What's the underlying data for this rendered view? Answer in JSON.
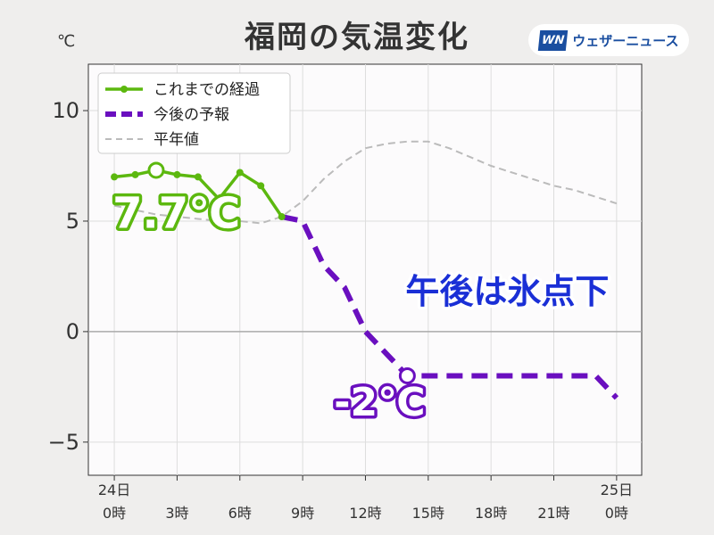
{
  "title": "福岡の気温変化",
  "brand": {
    "logo": "WN",
    "name": "ウェザーニュース"
  },
  "chart_data": {
    "type": "line",
    "title": "福岡の気温変化",
    "ylabel": "℃",
    "ylim": [
      -6.5,
      12.1
    ],
    "xlim": [
      -1.24,
      25.2
    ],
    "grid": true,
    "legend_position": "top-left",
    "yticks": [
      {
        "v": 10,
        "label": "10"
      },
      {
        "v": 5,
        "label": "5"
      },
      {
        "v": 0,
        "label": "0"
      },
      {
        "v": -5,
        "label": "−5"
      }
    ],
    "xticks": [
      {
        "v": 0,
        "l1": "24日",
        "l2": "0時"
      },
      {
        "v": 3,
        "l1": "",
        "l2": "3時"
      },
      {
        "v": 6,
        "l1": "",
        "l2": "6時"
      },
      {
        "v": 9,
        "l1": "",
        "l2": "9時"
      },
      {
        "v": 12,
        "l1": "",
        "l2": "12時"
      },
      {
        "v": 15,
        "l1": "",
        "l2": "15時"
      },
      {
        "v": 18,
        "l1": "",
        "l2": "18時"
      },
      {
        "v": 21,
        "l1": "",
        "l2": "21時"
      },
      {
        "v": 24,
        "l1": "25日",
        "l2": "0時"
      }
    ],
    "series": [
      {
        "name": "これまでの経過",
        "color": "#5cb80f",
        "style": "solid",
        "x": [
          0,
          1,
          2,
          3,
          4,
          5,
          6,
          7,
          8
        ],
        "values": [
          7.0,
          7.1,
          7.3,
          7.1,
          7.0,
          6.0,
          7.2,
          6.6,
          5.2
        ]
      },
      {
        "name": "今後の予報",
        "color": "#6a0fbf",
        "style": "dashed",
        "x": [
          8,
          9,
          10,
          11,
          12,
          13,
          14,
          15,
          16,
          17,
          18,
          19,
          20,
          21,
          22,
          23,
          24
        ],
        "values": [
          5.2,
          5.0,
          3.0,
          2.0,
          0.0,
          -1.0,
          -2.0,
          -2.0,
          -2.0,
          -2.0,
          -2.0,
          -2.0,
          -2.0,
          -2.0,
          -2.0,
          -2.0,
          -3.0
        ]
      },
      {
        "name": "平年値",
        "color": "#bbbbbb",
        "style": "dashed",
        "x": [
          0,
          1,
          2,
          3,
          4,
          5,
          6,
          7,
          8,
          9,
          10,
          11,
          12,
          13,
          14,
          15,
          16,
          17,
          18,
          19,
          20,
          21,
          22,
          23,
          24
        ],
        "values": [
          5.7,
          5.5,
          5.3,
          5.2,
          5.1,
          5.0,
          5.0,
          4.9,
          5.2,
          5.9,
          6.9,
          7.7,
          8.3,
          8.5,
          8.6,
          8.6,
          8.3,
          7.9,
          7.5,
          7.2,
          6.9,
          6.6,
          6.4,
          6.1,
          5.8
        ]
      }
    ],
    "annotations": [
      {
        "text": "7.7℃",
        "x": 0,
        "y": 4.7,
        "color": "#5cb80f",
        "marker_x": 2,
        "marker_y": 7.3
      },
      {
        "text": "-2℃",
        "x": 10.5,
        "y": -3.8,
        "color": "#6a0fbf",
        "marker_x": 14,
        "marker_y": -2.0
      },
      {
        "text": "午後は氷点下",
        "x": 14,
        "y": 1.2,
        "color": "#1a2fd6"
      }
    ]
  }
}
